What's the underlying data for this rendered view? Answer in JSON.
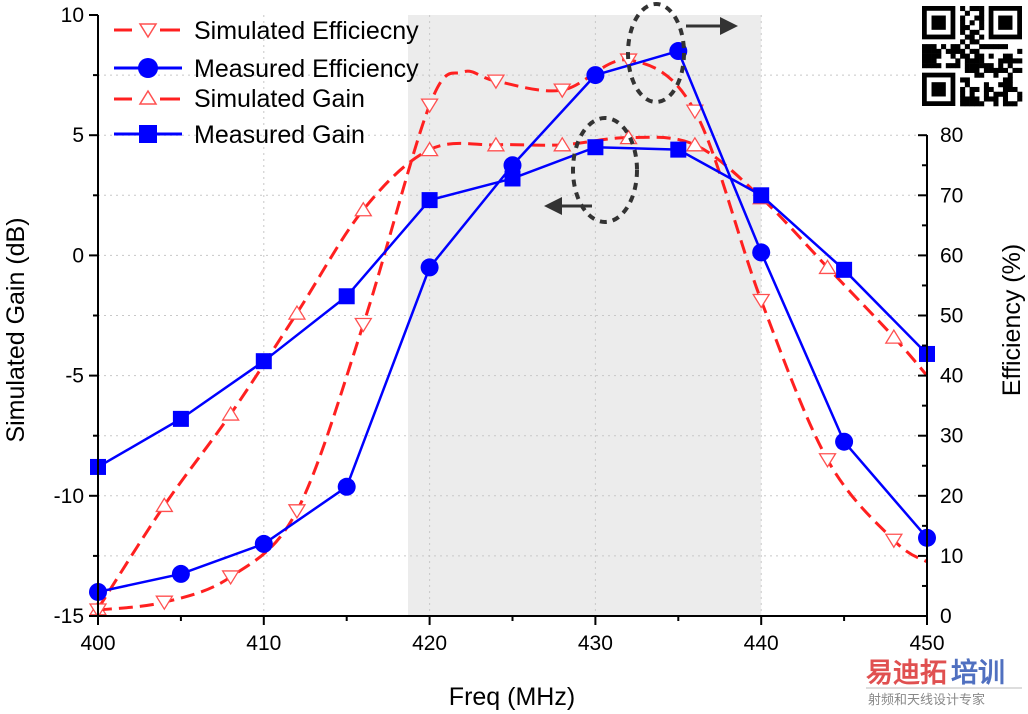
{
  "chart_data": {
    "type": "line",
    "title": "",
    "xlabel": "Freq (MHz)",
    "ylabel_left": "Simulated Gain (dB)",
    "ylabel_right": "Efficiency (%)",
    "xlim": [
      400,
      450
    ],
    "ylim_left": [
      -15,
      10
    ],
    "ylim_right": [
      0,
      100
    ],
    "x_ticks": [
      400,
      410,
      420,
      430,
      440,
      450
    ],
    "x_tick_labels": [
      "400",
      "410",
      "420",
      "430",
      "440",
      "450"
    ],
    "y_left_ticks": [
      -15,
      -10,
      -5,
      0,
      5,
      10
    ],
    "y_left_tick_labels": [
      "-15",
      "-10",
      "-5",
      "0",
      "5",
      "10"
    ],
    "y_right_ticks": [
      0,
      10,
      20,
      30,
      40,
      50,
      60,
      70,
      80
    ],
    "y_right_tick_labels": [
      "0",
      "10",
      "20",
      "30",
      "40",
      "50",
      "60",
      "70",
      "80"
    ],
    "grid": true,
    "shaded_band": [
      418.7,
      440
    ],
    "legend_position": "top-left",
    "series": [
      {
        "name": "Simulated Efficiecny",
        "axis": "right",
        "style": "dashed",
        "marker": "triangle-down-open",
        "color": "#ff2020",
        "x": [
          400,
          404,
          408,
          412,
          416,
          420,
          422,
          424,
          428,
          432,
          436,
          440,
          444,
          448,
          450
        ],
        "y": [
          1,
          2.3,
          6.5,
          17.5,
          48.5,
          85,
          90.5,
          89,
          87.5,
          92.5,
          84,
          52.5,
          26,
          12.6,
          9
        ],
        "marker_x": [
          400,
          404,
          408,
          412,
          416,
          420,
          424,
          428,
          432,
          436,
          440,
          444,
          448
        ]
      },
      {
        "name": "Measured Efficiency",
        "axis": "right",
        "style": "solid",
        "marker": "circle-filled",
        "color": "#0000ff",
        "x": [
          400,
          405,
          410,
          415,
          420,
          425,
          430,
          435,
          440,
          445,
          450
        ],
        "y": [
          4,
          7,
          12,
          21.5,
          58,
          75,
          90,
          94,
          60.5,
          29,
          13
        ]
      },
      {
        "name": "Simulated Gain",
        "axis": "left",
        "style": "dashed",
        "marker": "triangle-up-open",
        "color": "#ff2020",
        "x": [
          400,
          404,
          408,
          412,
          416,
          420,
          424,
          428,
          432,
          436,
          440,
          444,
          448,
          450
        ],
        "y": [
          -14.7,
          -10.4,
          -6.6,
          -2.4,
          1.9,
          4.4,
          4.6,
          4.6,
          4.9,
          4.6,
          2.4,
          -0.5,
          -3.4,
          -5.0
        ],
        "marker_x": [
          400,
          404,
          408,
          412,
          416,
          420,
          424,
          428,
          432,
          436,
          440,
          444,
          448
        ]
      },
      {
        "name": "Measured Gain",
        "axis": "left",
        "style": "solid",
        "marker": "square-filled",
        "color": "#0000ff",
        "x": [
          400,
          405,
          410,
          415,
          420,
          425,
          430,
          435,
          440,
          445,
          450
        ],
        "y": [
          -8.8,
          -6.8,
          -4.4,
          -1.7,
          2.3,
          3.2,
          4.5,
          4.4,
          2.5,
          -0.6,
          -4.1
        ]
      }
    ],
    "annotations": [
      {
        "type": "dashed-ellipse-with-arrow",
        "target": "efficiency peak",
        "arrow": "right",
        "meaning": "refers to right axis"
      },
      {
        "type": "dashed-ellipse-with-arrow",
        "target": "gain plateau",
        "arrow": "left",
        "meaning": "refers to left axis"
      }
    ]
  },
  "watermark": {
    "brand_red": "易迪拓",
    "brand_blue": "培训",
    "tagline": "射频和天线设计专家",
    "red": "#e05050",
    "blue": "#5070c0"
  },
  "qr_code": {
    "present": true
  }
}
